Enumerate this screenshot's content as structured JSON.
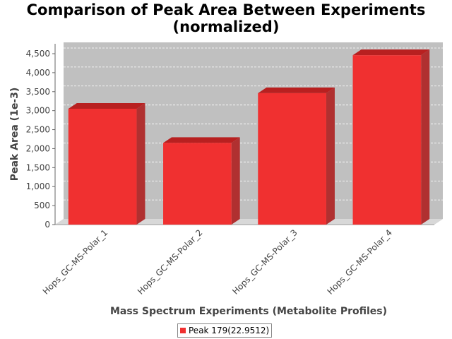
{
  "chart_data": {
    "type": "bar",
    "title": [
      "Comparison of Peak Area Between Experiments",
      "(normalized)"
    ],
    "xlabel": "Mass Spectrum Experiments (Metabolite Profiles)",
    "ylabel": "Peak Area (1e-3)",
    "categories": [
      "Hops_GC-MS-Polar_1",
      "Hops_GC-MS-Polar_2",
      "Hops_GC-MS-Polar_3",
      "Hops_GC-MS-Polar_4"
    ],
    "series": [
      {
        "name": "Peak 179(22.9512)",
        "values": [
          3050,
          2150,
          3460,
          4460
        ]
      }
    ],
    "ylim": [
      0,
      4500
    ],
    "yticks": [
      0,
      500,
      1000,
      1500,
      2000,
      2500,
      3000,
      3500,
      4000,
      4500
    ],
    "ytick_labels": [
      "0",
      "500",
      "1,000",
      "1,500",
      "2,000",
      "2,500",
      "3,000",
      "3,500",
      "4,000",
      "4,500"
    ],
    "grid": true,
    "legend_position": "bottom",
    "colors": {
      "bar_front": "#f03030",
      "bar_top": "#b82020",
      "bar_side": "#b03030",
      "plot_background": "#c0c0c0",
      "floor": "#d8d8d8"
    }
  }
}
